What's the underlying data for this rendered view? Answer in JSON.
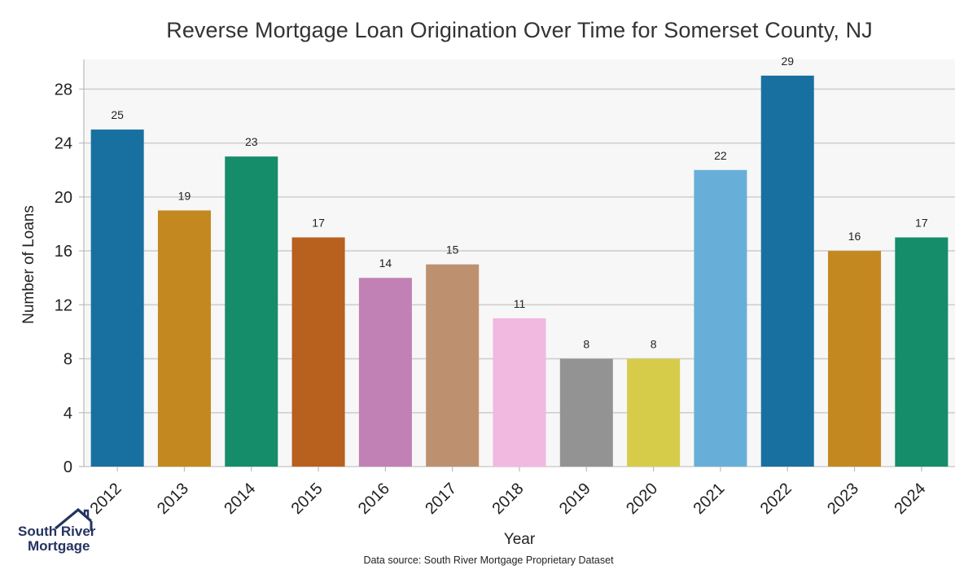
{
  "chart_data": {
    "type": "bar",
    "title": "Reverse Mortgage Loan Origination Over Time for Somerset County, NJ",
    "xlabel": "Year",
    "ylabel": "Number of Loans",
    "categories": [
      "2012",
      "2013",
      "2014",
      "2015",
      "2016",
      "2017",
      "2018",
      "2019",
      "2020",
      "2021",
      "2022",
      "2023",
      "2024"
    ],
    "values": [
      25,
      19,
      23,
      17,
      14,
      15,
      11,
      8,
      8,
      22,
      29,
      16,
      17
    ],
    "colors": [
      "#1870a0",
      "#c48820",
      "#158c6a",
      "#b8601e",
      "#c181b5",
      "#bd9170",
      "#f1b8e0",
      "#939393",
      "#d6cc4a",
      "#67afd8",
      "#1870a0",
      "#c48820",
      "#158c6a"
    ],
    "yticks": [
      0,
      4,
      8,
      12,
      16,
      20,
      24,
      28
    ],
    "ylim": [
      0,
      30.2
    ],
    "grid": true,
    "plot_background": "#f7f7f7"
  },
  "footer": {
    "source": "Data source: South River Mortgage Proprietary Dataset"
  },
  "logo": {
    "line1": "South River",
    "line2": "Mortgage",
    "color": "#25335f"
  }
}
